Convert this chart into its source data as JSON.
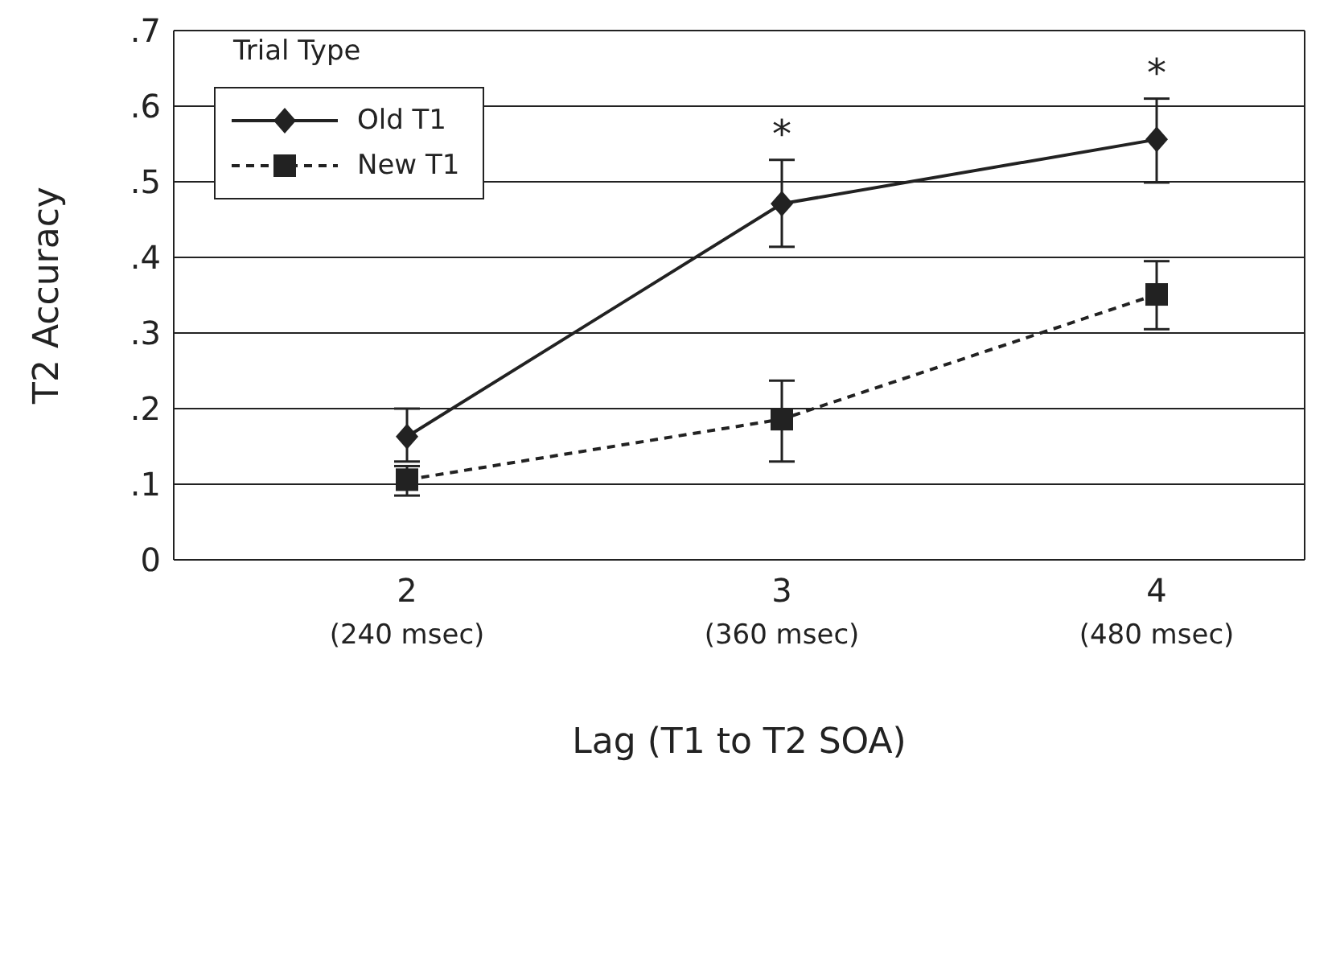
{
  "chart_data": {
    "type": "line",
    "xlabel": "Lag (T1 to T2 SOA)",
    "ylabel": "T2 Accuracy",
    "legend_title": "Trial Type",
    "categories": [
      "2\n(240 msec)",
      "3\n(360 msec)",
      "4\n(480 msec)"
    ],
    "series": [
      {
        "name": "Old T1",
        "color": "#222222",
        "values": [
          0.163,
          0.471,
          0.556
        ],
        "errors": [
          [
            0.13,
            0.2
          ],
          [
            0.414,
            0.529
          ],
          [
            0.499,
            0.61
          ]
        ],
        "marker": "diamond",
        "line_style": "solid"
      },
      {
        "name": "New T1",
        "color": "#222222",
        "values": [
          0.106,
          0.186,
          0.351
        ],
        "errors": [
          [
            0.085,
            0.124
          ],
          [
            0.13,
            0.237
          ],
          [
            0.305,
            0.395
          ]
        ],
        "marker": "square",
        "line_style": "dashed"
      }
    ],
    "ylim": [
      0,
      0.7
    ],
    "yticks": [
      0,
      {
        "value": 0.1,
        "label": ".1"
      },
      {
        "value": 0.2,
        "label": ".2"
      },
      {
        "value": 0.3,
        "label": ".3"
      },
      {
        "value": 0.4,
        "label": ".4"
      },
      {
        "value": 0.5,
        "label": ".5"
      },
      {
        "value": 0.6,
        "label": ".6"
      },
      {
        "value": 0.7,
        "label": ".7"
      }
    ],
    "grid": "y",
    "legend": "top left",
    "annotations": [
      {
        "text": "*",
        "x": "3\n(360 msec)",
        "y": 0.529
      },
      {
        "text": "*",
        "x": "4\n(480 msec)",
        "y": 0.61
      }
    ]
  }
}
